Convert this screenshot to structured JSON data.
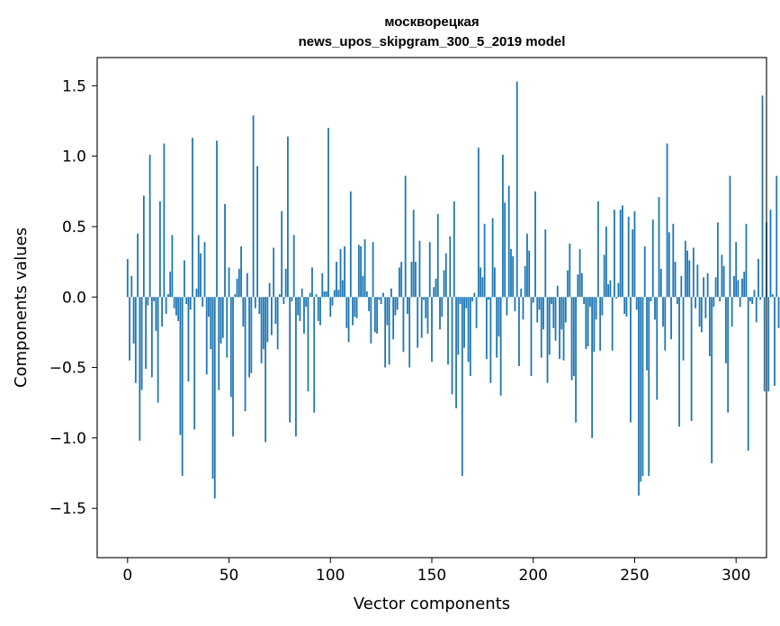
{
  "chart_data": {
    "type": "bar",
    "title_lines": [
      "москворецкая",
      "news_upos_skipgram_300_5_2019 model"
    ],
    "xlabel": "Vector components",
    "ylabel": "Components values",
    "xlim": [
      -15,
      315
    ],
    "ylim": [
      -1.85,
      1.7
    ],
    "x_ticks": [
      0,
      50,
      100,
      150,
      200,
      250,
      300
    ],
    "y_ticks": [
      -1.5,
      -1.0,
      -0.5,
      0.0,
      0.5,
      1.0,
      1.5
    ],
    "y_tick_labels": [
      "−1.5",
      "−1.0",
      "−0.5",
      "0.0",
      "0.5",
      "1.0",
      "1.5"
    ],
    "bar_color": "#1f77b4",
    "values": [
      0.27,
      -0.45,
      0.15,
      -0.33,
      -0.61,
      0.45,
      -1.02,
      -0.66,
      0.72,
      -0.51,
      -0.06,
      1.01,
      -0.57,
      -0.03,
      -0.24,
      -0.75,
      0.68,
      -0.21,
      1.09,
      -0.12,
      0.02,
      0.18,
      0.44,
      -0.08,
      -0.13,
      -0.17,
      -0.98,
      -1.27,
      0.26,
      -0.05,
      -0.6,
      -0.09,
      1.13,
      -0.94,
      0.06,
      0.44,
      0.31,
      -0.07,
      0.39,
      -0.55,
      -0.14,
      -0.37,
      -1.29,
      -1.43,
      1.11,
      -0.66,
      -0.33,
      -0.29,
      0.66,
      -0.43,
      0.21,
      -0.71,
      -0.99,
      0.02,
      0.13,
      0.2,
      0.36,
      -0.21,
      -0.81,
      0.17,
      -0.57,
      -0.54,
      1.29,
      -0.08,
      0.93,
      -0.12,
      -0.47,
      -0.37,
      -1.03,
      -0.32,
      0.1,
      -0.27,
      0.35,
      -0.19,
      -0.37,
      0.02,
      0.61,
      -0.05,
      0.2,
      1.14,
      -0.89,
      -0.03,
      0.44,
      -0.99,
      -0.13,
      -0.17,
      0.06,
      -0.26,
      -0.07,
      -0.67,
      0.03,
      0.21,
      -0.82,
      0.02,
      -0.17,
      -0.2,
      0.17,
      0.04,
      0.04,
      1.2,
      -0.14,
      -0.06,
      0.05,
      0.25,
      0.05,
      0.34,
      0.12,
      0.36,
      -0.22,
      -0.32,
      0.75,
      -0.2,
      -0.14,
      -0.15,
      0.37,
      0.36,
      0.15,
      0.41,
      0.04,
      -0.1,
      -0.33,
      0.39,
      -0.25,
      -0.26,
      -0.02,
      -0.05,
      0.03,
      -0.5,
      -0.2,
      -0.48,
      0.06,
      -0.3,
      -0.13,
      -0.09,
      0.21,
      0.25,
      -0.39,
      0.86,
      -0.12,
      -0.5,
      0.25,
      0.62,
      0.25,
      -0.36,
      0.4,
      -0.29,
      -0.02,
      -0.15,
      -0.26,
      0.39,
      -0.46,
      0.07,
      0.13,
      0.59,
      -0.23,
      -0.14,
      0.19,
      0.31,
      -0.48,
      0.43,
      -0.69,
      0.68,
      -0.79,
      -0.41,
      -0.05,
      -1.27,
      -0.36,
      -0.08,
      -0.46,
      -0.56,
      -0.03,
      0.03,
      -0.22,
      1.06,
      0.21,
      0.14,
      0.52,
      -0.44,
      -0.02,
      -0.61,
      0.56,
      0.21,
      -0.43,
      -0.28,
      -0.7,
      1.01,
      0.67,
      -0.13,
      0.79,
      0.34,
      0.29,
      -0.1,
      1.53,
      -0.49,
      0.06,
      -0.16,
      0.22,
      0.45,
      0.33,
      -0.56,
      -0.04,
      0.75,
      -0.18,
      -0.09,
      -0.43,
      -0.23,
      0.48,
      -0.61,
      -0.41,
      -0.05,
      -0.22,
      -0.31,
      0.08,
      -0.44,
      -0.23,
      -0.45,
      -0.18,
      0.19,
      0.38,
      -0.59,
      -0.56,
      -0.89,
      0.16,
      0.34,
      0.17,
      -0.05,
      -0.37,
      -0.35,
      -0.07,
      -1.0,
      -0.39,
      -0.16,
      0.68,
      -0.38,
      -0.13,
      0.3,
      0.5,
      0.09,
      0.12,
      -0.38,
      0.62,
      -0.01,
      0.1,
      0.62,
      0.65,
      -0.12,
      -0.14,
      0.57,
      -0.89,
      0.48,
      0.61,
      -0.09,
      -1.41,
      -1.31,
      -1.27,
      0.36,
      -0.52,
      -1.27,
      -0.03,
      0.55,
      -0.16,
      -0.73,
      0.71,
      0.2,
      -0.21,
      -0.38,
      1.09,
      0.46,
      -0.3,
      0.52,
      0.25,
      -0.05,
      -0.92,
      0.15,
      -0.45,
      0.4,
      0.33,
      0.26,
      -0.88,
      0.35,
      -0.08,
      0.23,
      -0.21,
      -0.25,
      0.14,
      -0.15,
      0.17,
      -0.42,
      -1.18,
      -0.07,
      0.14,
      0.53,
      -0.03,
      0.3,
      0.22,
      -0.47,
      -0.82,
      0.86,
      -0.21,
      0.15,
      0.39,
      0.12,
      -0.07,
      0.13,
      0.18,
      0.52,
      -1.09,
      -0.03,
      -0.05,
      0.05,
      -0.18,
      0.27,
      -0.02,
      1.43,
      -0.67,
      0.53,
      -0.67,
      0.62,
      0.02,
      -0.63,
      0.86,
      -0.22,
      0.06
    ]
  }
}
